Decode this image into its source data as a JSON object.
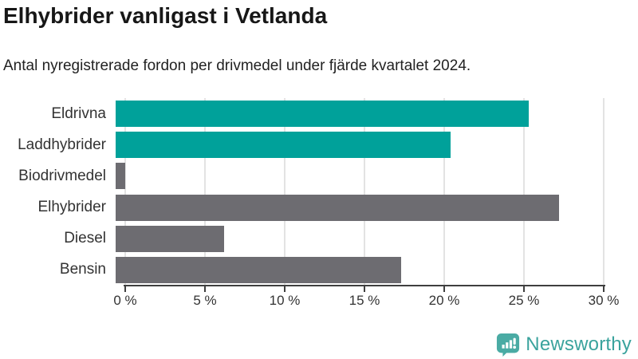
{
  "header": {
    "title": "Elhybrider vanligast i Vetlanda",
    "subtitle": "Antal nyregistrerade fordon per drivmedel under fjärde kvartalet 2024."
  },
  "chart_data": {
    "type": "bar",
    "orientation": "horizontal",
    "title": "Elhybrider vanligast i Vetlanda",
    "subtitle": "Antal nyregistrerade fordon per drivmedel under fjärde kvartalet 2024.",
    "categories": [
      "Eldrivna",
      "Laddhybrider",
      "Biodrivmedel",
      "Elhybrider",
      "Diesel",
      "Bensin"
    ],
    "values": [
      25.9,
      21.0,
      0.6,
      27.8,
      6.8,
      17.9
    ],
    "unit": "%",
    "bar_colors": [
      "#00a19a",
      "#00a19a",
      "#6d6c71",
      "#6d6c71",
      "#6d6c71",
      "#6d6c71"
    ],
    "xlabel": "",
    "ylabel": "",
    "xlim": [
      0,
      30
    ],
    "x_ticks": [
      0,
      5,
      10,
      15,
      20,
      25,
      30
    ],
    "x_tick_labels": [
      "0 %",
      "5 %",
      "10 %",
      "15 %",
      "20 %",
      "25 %",
      "30 %"
    ],
    "grid": true,
    "legend": "none"
  },
  "branding": {
    "logo_text": "Newsworthy",
    "logo_icon": "bar-chart-speech-bubble-icon",
    "logo_color": "#3aa39d",
    "logo_icon_color": "#4aaba4"
  },
  "colors": {
    "highlight": "#00a19a",
    "neutral": "#6d6c71",
    "axis": "#3f3f3f",
    "grid": "#e3e3e3",
    "title_text": "#171717"
  }
}
